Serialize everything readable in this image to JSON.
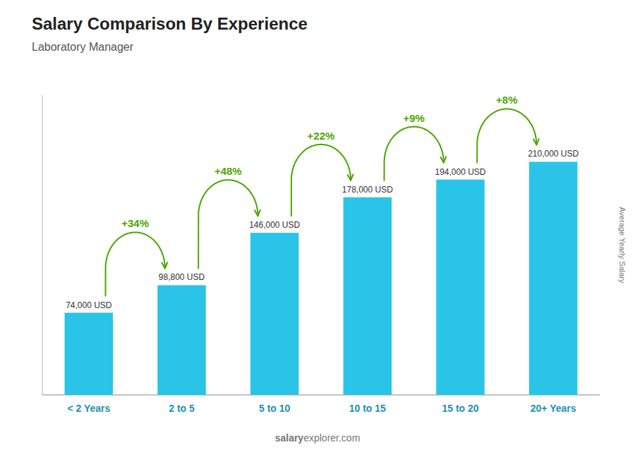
{
  "chart_data": {
    "type": "bar",
    "title": "Salary Comparison By Experience",
    "subtitle": "Laboratory Manager",
    "ylabel": "Average Yearly Salary",
    "categories": [
      "< 2 Years",
      "2 to 5",
      "5 to 10",
      "10 to 15",
      "15 to 20",
      "20+ Years"
    ],
    "values": [
      74000,
      98800,
      146000,
      178000,
      194000,
      210000
    ],
    "value_labels": [
      "74,000 USD",
      "98,800 USD",
      "146,000 USD",
      "178,000 USD",
      "194,000 USD",
      "210,000 USD"
    ],
    "data_labels": true,
    "color": "#29c4e8",
    "ylim": [
      0,
      270000
    ],
    "yticks": [],
    "tick_labels": "x",
    "grid": false,
    "annotations": [
      "+34%",
      "+48%",
      "+22%",
      "+9%",
      "+8%"
    ],
    "footer": [
      "salary",
      "explorer.com"
    ]
  }
}
